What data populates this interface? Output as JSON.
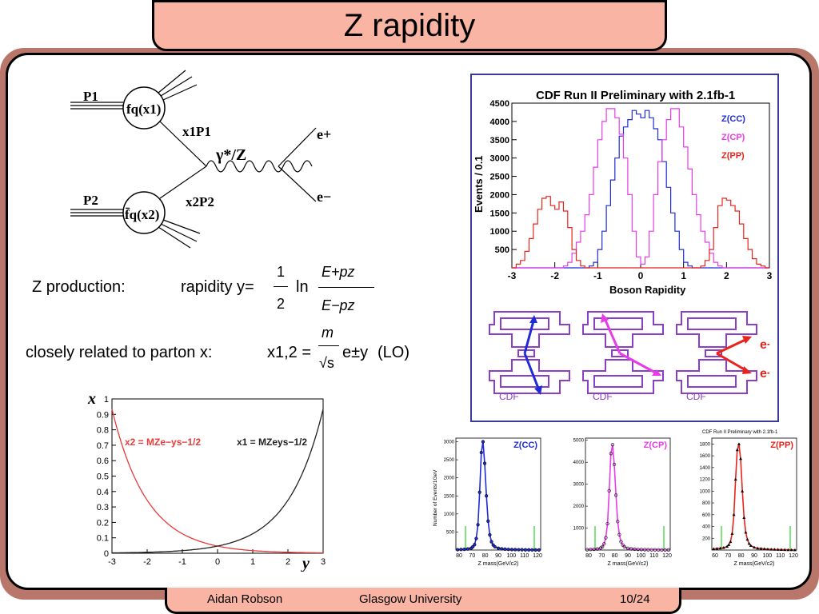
{
  "title": "Z rapidity",
  "footer": {
    "author": "Aidan Robson",
    "institution": "Glasgow University",
    "page": "10/24"
  },
  "feynman": {
    "p1": "P1",
    "p2": "P2",
    "pdf1": "fq(x1)",
    "pdf2": "f̄q(x2)",
    "x1p1": "x1P1",
    "x2p2": "x2P2",
    "boson": "γ*/Z",
    "eplus": "e+",
    "eminus": "e−"
  },
  "equations": {
    "z_production": "Z production:",
    "rapidity_label": "rapidity y=",
    "rapidity_num": "1",
    "rapidity_den": "2",
    "ln": "ln",
    "frac_num": "E+pz",
    "frac_den": "E−pz",
    "closely": "closely related to parton x:",
    "x12": "x1,2 =",
    "m": "m",
    "sqrt_s": "√s",
    "exp": "e±y",
    "lo": "(LO)"
  },
  "colors": {
    "cc": "#1f2bd6",
    "cp": "#e83be8",
    "pp": "#e8231c",
    "x2curve": "#e83a3a",
    "x1curve": "#222222",
    "detector": "#8b3fc8",
    "frame_border": "#3a3a9a"
  },
  "parton_plot": {
    "xlabel": "y",
    "ylabel": "x",
    "x2_label": "x2 = MZe−ys−1/2",
    "x1_label": "x1 = MZeys−1/2",
    "xticks": [
      "-3",
      "-2",
      "-1",
      "0",
      "1",
      "2",
      "3"
    ],
    "yticks": [
      "0",
      "0.1",
      "0.2",
      "0.3",
      "0.4",
      "0.5",
      "0.6",
      "0.7",
      "0.8",
      "0.9",
      "1"
    ]
  },
  "chart_data": [
    {
      "type": "line",
      "title": "CDF Run II Preliminary with 2.1fb-1",
      "xlabel": "Boson Rapidity",
      "ylabel": "Events / 0.1",
      "xlim": [
        -3,
        3
      ],
      "ylim": [
        0,
        4500
      ],
      "xticks": [
        "-3",
        "-2",
        "-1",
        "0",
        "1",
        "2",
        "3"
      ],
      "yticks": [
        "500",
        "1000",
        "1500",
        "2000",
        "2500",
        "3000",
        "3500",
        "4000",
        "4500"
      ],
      "legend": "top-right",
      "x": [
        -3.0,
        -2.9,
        -2.8,
        -2.7,
        -2.6,
        -2.5,
        -2.4,
        -2.3,
        -2.2,
        -2.1,
        -2.0,
        -1.9,
        -1.8,
        -1.7,
        -1.6,
        -1.5,
        -1.4,
        -1.3,
        -1.2,
        -1.1,
        -1.0,
        -0.9,
        -0.8,
        -0.7,
        -0.6,
        -0.5,
        -0.4,
        -0.3,
        -0.2,
        -0.1,
        0.0,
        0.1,
        0.2,
        0.3,
        0.4,
        0.5,
        0.6,
        0.7,
        0.8,
        0.9,
        1.0,
        1.1,
        1.2,
        1.3,
        1.4,
        1.5,
        1.6,
        1.7,
        1.8,
        1.9,
        2.0,
        2.1,
        2.2,
        2.3,
        2.4,
        2.5,
        2.6,
        2.7,
        2.8,
        2.9
      ],
      "series": [
        {
          "name": "Z(CC)",
          "values": [
            0,
            0,
            0,
            0,
            0,
            0,
            0,
            0,
            0,
            0,
            0,
            0,
            0,
            0,
            0,
            0,
            0,
            0,
            50,
            150,
            500,
            1000,
            1700,
            2400,
            3000,
            3600,
            3850,
            4050,
            4300,
            4200,
            4100,
            4300,
            4100,
            3800,
            3500,
            2900,
            2200,
            1500,
            1000,
            500,
            150,
            50,
            0,
            0,
            0,
            0,
            0,
            0,
            0,
            0,
            0,
            0,
            0,
            0,
            0,
            0,
            0,
            0,
            0,
            0
          ]
        },
        {
          "name": "Z(CP)",
          "values": [
            0,
            0,
            0,
            0,
            0,
            0,
            0,
            0,
            0,
            0,
            0,
            0,
            50,
            150,
            400,
            700,
            1000,
            1450,
            2000,
            2750,
            3500,
            4000,
            4350,
            4350,
            4100,
            3650,
            3000,
            2000,
            1000,
            300,
            100,
            300,
            1000,
            2000,
            2900,
            3500,
            4050,
            4350,
            4350,
            3850,
            3300,
            2700,
            2000,
            1450,
            1000,
            700,
            400,
            150,
            50,
            0,
            0,
            0,
            0,
            0,
            0,
            0,
            0,
            0,
            0,
            0
          ]
        },
        {
          "name": "Z(PP)",
          "values": [
            0,
            100,
            200,
            450,
            800,
            1200,
            1600,
            1900,
            1950,
            1700,
            1600,
            1800,
            1550,
            1100,
            500,
            200,
            50,
            0,
            0,
            0,
            0,
            0,
            0,
            0,
            0,
            0,
            0,
            0,
            0,
            0,
            0,
            0,
            0,
            0,
            0,
            0,
            0,
            0,
            0,
            0,
            0,
            0,
            0,
            0,
            50,
            200,
            500,
            1100,
            1700,
            1900,
            1850,
            1700,
            1550,
            1200,
            800,
            500,
            250,
            100,
            50,
            0
          ]
        }
      ]
    },
    {
      "type": "scatter",
      "title": "Z(CC)",
      "xlabel": "Z mass(GeV/c2)",
      "ylabel": "Number of Events/1GeV",
      "xlim": [
        75,
        125
      ],
      "ylim": [
        0,
        3100
      ],
      "xticks": [
        "80",
        "70",
        "80",
        "90",
        "100",
        "110",
        "120"
      ],
      "yticks": [
        "500",
        "1000",
        "1500",
        "2000",
        "2500",
        "3000"
      ],
      "x": [
        76,
        78,
        80,
        82,
        84,
        85,
        86,
        87,
        88,
        89,
        90,
        91,
        92,
        93,
        94,
        95,
        96,
        97,
        98,
        100,
        102,
        104,
        106,
        108,
        110,
        112,
        114,
        116,
        118,
        120,
        122,
        124
      ],
      "series": [
        {
          "values": [
            10,
            15,
            20,
            30,
            50,
            90,
            150,
            320,
            700,
            1600,
            2700,
            3000,
            2400,
            1500,
            800,
            420,
            230,
            140,
            90,
            50,
            35,
            25,
            18,
            14,
            12,
            10,
            8,
            6,
            5,
            4,
            3,
            2
          ]
        }
      ]
    },
    {
      "type": "scatter",
      "title": "Z(CP)",
      "xlabel": "Z mass(GeV/c2)",
      "ylabel": "",
      "xlim": [
        75,
        125
      ],
      "ylim": [
        0,
        5100
      ],
      "xticks": [
        "80",
        "70",
        "80",
        "90",
        "100",
        "110",
        "120"
      ],
      "yticks": [
        "1000",
        "2000",
        "3000",
        "4000",
        "5000"
      ],
      "x": [
        76,
        78,
        80,
        82,
        84,
        85,
        86,
        87,
        88,
        89,
        90,
        91,
        92,
        93,
        94,
        95,
        96,
        97,
        98,
        100,
        102,
        104,
        106,
        108,
        110,
        112,
        114,
        116,
        118,
        120,
        122,
        124
      ],
      "series": [
        {
          "values": [
            15,
            25,
            35,
            50,
            90,
            150,
            280,
            560,
            1200,
            2700,
            4400,
            4800,
            3900,
            2500,
            1300,
            700,
            380,
            230,
            150,
            80,
            55,
            40,
            30,
            22,
            18,
            15,
            12,
            10,
            8,
            6,
            5,
            4
          ]
        }
      ]
    },
    {
      "type": "scatter",
      "title": "CDF Run II Preliminary with 2.1fb-1",
      "subtitle": "Z(PP)",
      "xlabel": "Z mass(GeV/c2)",
      "ylabel": "",
      "xlim": [
        75,
        125
      ],
      "ylim": [
        0,
        1900
      ],
      "xticks": [
        "60",
        "70",
        "80",
        "90",
        "100",
        "110",
        "120"
      ],
      "yticks": [
        "200",
        "400",
        "600",
        "800",
        "1000",
        "1200",
        "1400",
        "1600",
        "1800"
      ],
      "x": [
        76,
        78,
        80,
        82,
        84,
        85,
        86,
        87,
        88,
        89,
        90,
        91,
        92,
        93,
        94,
        95,
        96,
        97,
        98,
        100,
        102,
        104,
        106,
        108,
        110,
        112,
        114,
        116,
        118,
        120,
        122,
        124
      ],
      "series": [
        {
          "values": [
            20,
            25,
            30,
            40,
            60,
            90,
            140,
            280,
            600,
            1200,
            1700,
            1800,
            1550,
            1000,
            550,
            300,
            180,
            110,
            75,
            45,
            30,
            25,
            20,
            15,
            12,
            10,
            8,
            6,
            5,
            4,
            3,
            2
          ]
        }
      ]
    }
  ],
  "detectors": [
    {
      "label": "CDF",
      "color": "#1f2bd6"
    },
    {
      "label": "CDF",
      "color": "#e83be8"
    },
    {
      "label": "CDF",
      "color": "#e8231c",
      "eplus": "e+",
      "eminus": "e−"
    }
  ]
}
